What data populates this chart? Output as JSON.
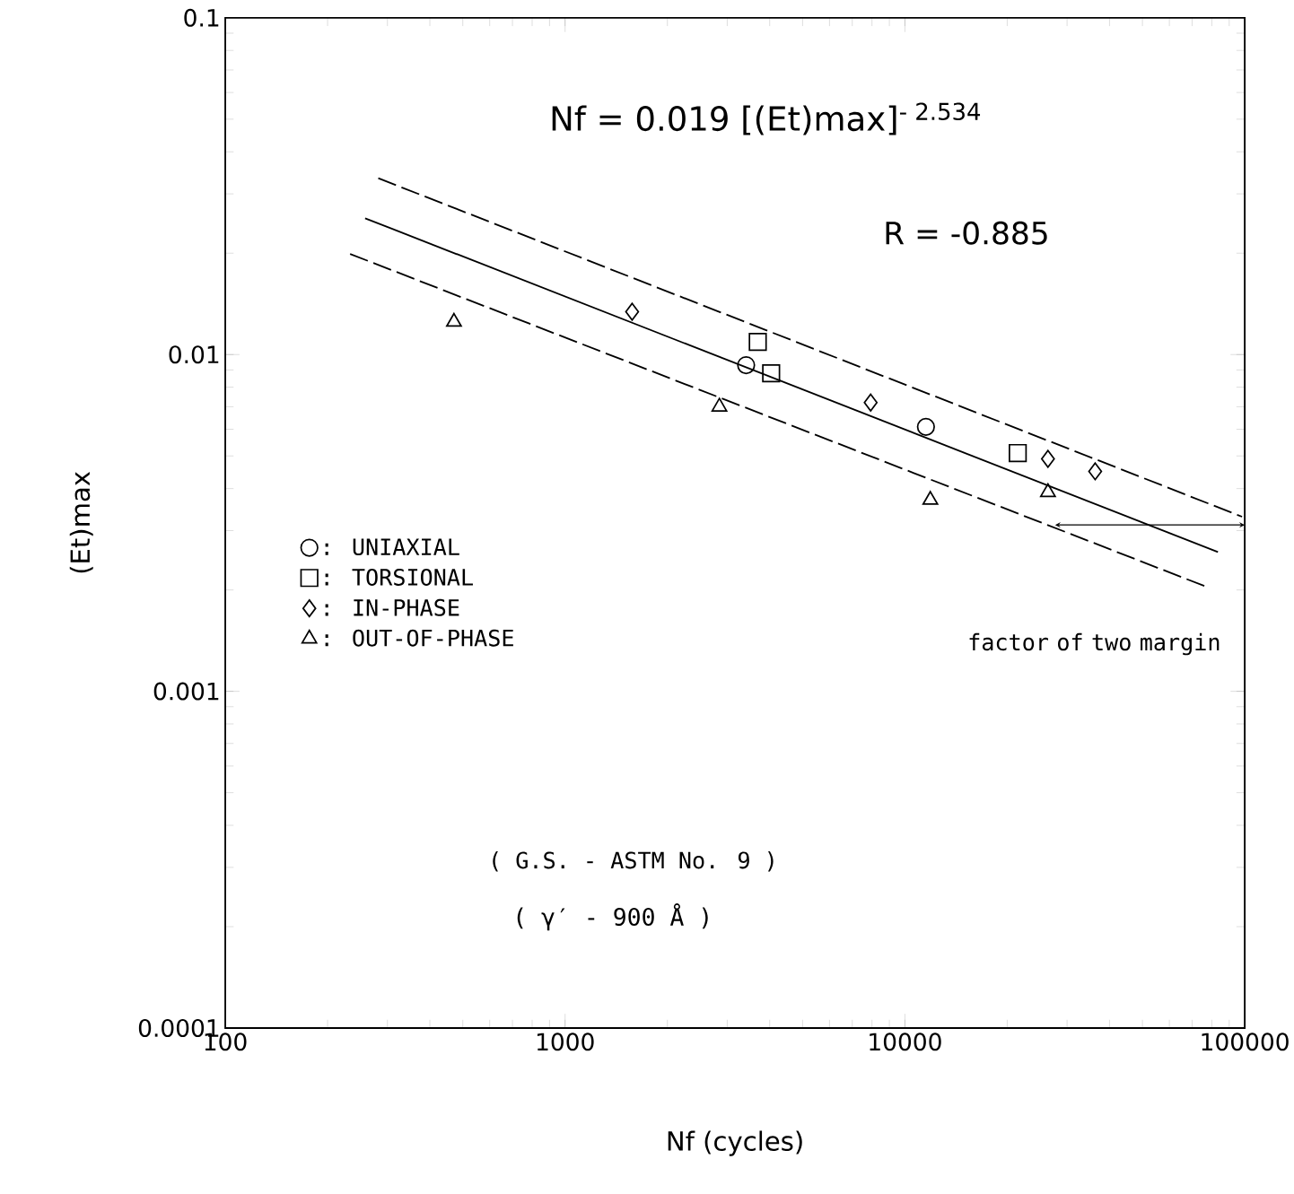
{
  "chart_data": {
    "type": "scatter",
    "xlabel": "Nf (cycles)",
    "ylabel": "(Et)max",
    "log": "xy",
    "grid": false,
    "legend": "left",
    "xlim": [
      100,
      100000
    ],
    "ylim": [
      0.0001,
      0.1
    ],
    "xticks": [
      100,
      1000,
      10000,
      100000
    ],
    "yticks": [
      0.0001,
      0.001,
      0.01,
      0.1
    ],
    "series": [
      {
        "name": ": UNIAXIAL",
        "color": "#000000",
        "marker": "circle",
        "x": [
          3410,
          11530
        ],
        "values": [
          0.0093,
          0.0061
        ]
      },
      {
        "name": ": TORSIONAL",
        "color": "#000000",
        "marker": "square",
        "x": [
          3690,
          4040,
          21480
        ],
        "values": [
          0.0109,
          0.0088,
          0.0051
        ]
      },
      {
        "name": ": IN-PHASE",
        "color": "#000000",
        "marker": "diamond",
        "x": [
          1575,
          7930,
          26360,
          36300
        ],
        "values": [
          0.0134,
          0.0072,
          0.0049,
          0.0045
        ]
      },
      {
        "name": ": OUT-OF-PHASE",
        "color": "#000000",
        "marker": "triangle",
        "x": [
          471,
          2845,
          11880,
          26360
        ],
        "values": [
          0.0125,
          0.007,
          0.0037,
          0.0039
        ]
      },
      {
        "type": "line",
        "color": "#000000",
        "line_style": "solid",
        "x": [
          258,
          83400
        ],
        "values": [
          0.0254,
          0.00259
        ]
      },
      {
        "type": "line",
        "color": "#000000",
        "line_style": "dashed",
        "x": [
          282,
          98200
        ],
        "values": [
          0.0334,
          0.0033
        ]
      },
      {
        "type": "line",
        "color": "#000000",
        "line_style": "dashed",
        "x": [
          233,
          78500
        ],
        "values": [
          0.0199,
          0.00203
        ]
      }
    ],
    "annotations": [
      "Nf = 0.019 [(Et)max]$^{- 2.534}$",
      "R = -0.885",
      "factor of two margin",
      "( G.S. - ASTM No. 9 )",
      "( γ′ - 900 Å )"
    ]
  }
}
